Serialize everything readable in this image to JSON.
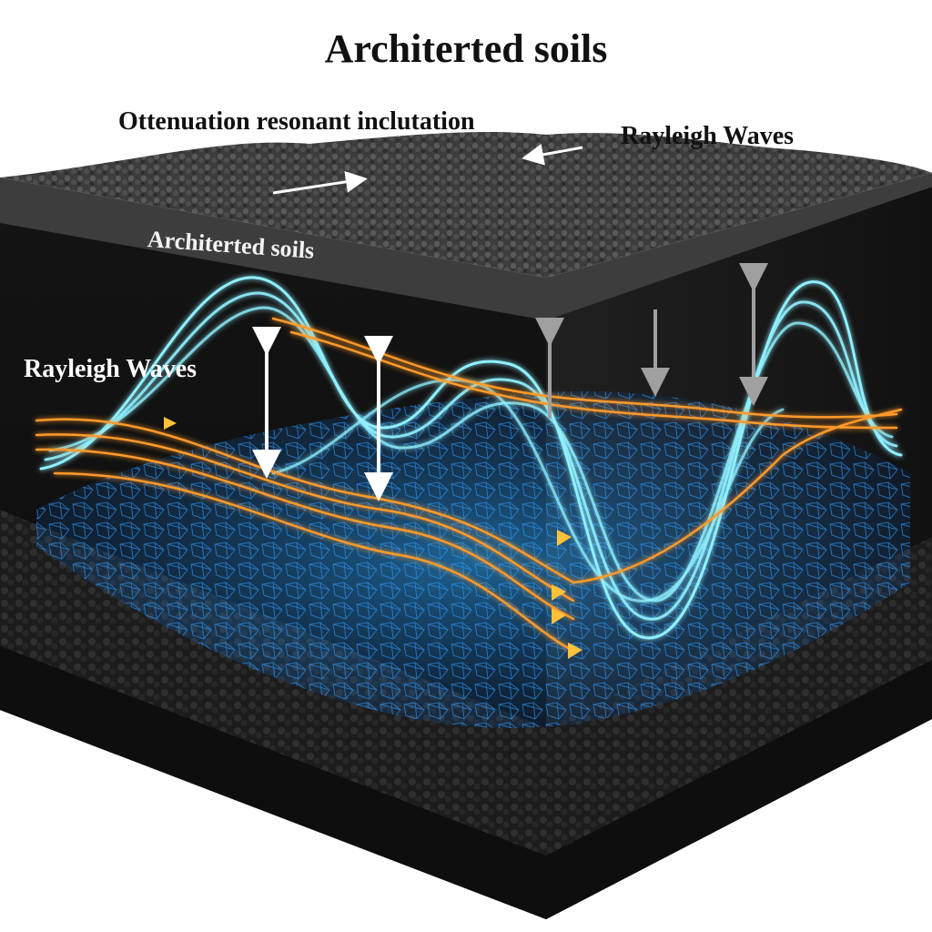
{
  "diagram": {
    "title": "Architerted soils",
    "labels": {
      "top_left": "Ottenuation resonant inclutation",
      "top_right": "Rayleigh Waves",
      "slab_edge": "Architerted soils",
      "left_side": "Rayleigh Waves"
    },
    "colors": {
      "soil_dark": "#1a1a1a",
      "soil_top": "#4a4a4a",
      "wave_cyan": "#7fe8ff",
      "wave_orange": "#ff9a2a",
      "mesh_blue": "#1f8fff",
      "arrow_white": "#ffffff",
      "arrow_grey": "#9a9a9a"
    },
    "icons": [
      "double-arrow-icon",
      "flow-arrow-icon"
    ]
  }
}
